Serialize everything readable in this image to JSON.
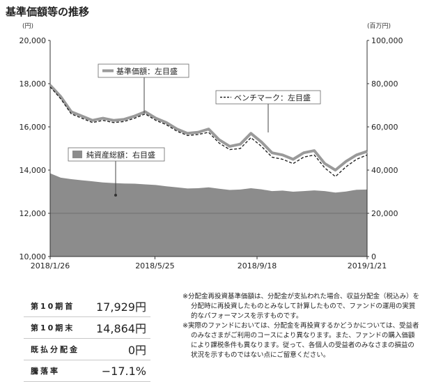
{
  "title": "基準価額等の推移",
  "chart_data": {
    "type": "line",
    "left_axis": {
      "unit": "(円)",
      "min": 10000,
      "max": 20000,
      "ticks": [
        10000,
        12000,
        14000,
        16000,
        18000,
        20000
      ],
      "tick_labels": [
        "10,000",
        "12,000",
        "14,000",
        "16,000",
        "18,000",
        "20,000"
      ]
    },
    "right_axis": {
      "unit": "(百万円)",
      "min": 0,
      "max": 100000,
      "ticks": [
        0,
        20000,
        40000,
        60000,
        80000,
        100000
      ],
      "tick_labels": [
        "0",
        "20,000",
        "40,000",
        "60,000",
        "80,000",
        "100,000"
      ]
    },
    "x_axis": {
      "start": "2018-01-26",
      "end": "2019-01-21",
      "tick_dates": [
        "2018-01-26",
        "2018-05-25",
        "2018-09-18",
        "2019-01-21"
      ],
      "tick_labels": [
        "2018/1/26",
        "2018/5/25",
        "2018/9/18",
        "2019/1/21"
      ]
    },
    "x": [
      "2018-01-26",
      "2018-02-07",
      "2018-02-19",
      "2018-03-03",
      "2018-03-15",
      "2018-03-27",
      "2018-04-08",
      "2018-04-20",
      "2018-05-02",
      "2018-05-14",
      "2018-05-26",
      "2018-06-07",
      "2018-06-19",
      "2018-07-01",
      "2018-07-13",
      "2018-07-25",
      "2018-08-06",
      "2018-08-18",
      "2018-08-30",
      "2018-09-11",
      "2018-09-23",
      "2018-10-05",
      "2018-10-17",
      "2018-10-29",
      "2018-11-10",
      "2018-11-22",
      "2018-12-04",
      "2018-12-16",
      "2018-12-28",
      "2019-01-09",
      "2019-01-21"
    ],
    "series": [
      {
        "name": "基準価額：左目盛",
        "axis": "left",
        "color": "#9a9a9a",
        "style": "solid-thick",
        "values": [
          17929,
          17400,
          16700,
          16500,
          16300,
          16400,
          16300,
          16350,
          16500,
          16700,
          16400,
          16200,
          15900,
          15700,
          15750,
          15900,
          15400,
          15100,
          15200,
          15700,
          15300,
          14800,
          14700,
          14500,
          14800,
          14900,
          14300,
          14000,
          14400,
          14700,
          14864
        ]
      },
      {
        "name": "ベンチマーク：左目盛",
        "axis": "left",
        "color": "#222222",
        "style": "dashed",
        "values": [
          17850,
          17300,
          16600,
          16400,
          16200,
          16300,
          16200,
          16250,
          16400,
          16600,
          16300,
          16100,
          15800,
          15600,
          15650,
          15750,
          15250,
          14950,
          15000,
          15500,
          15100,
          14600,
          14500,
          14300,
          14600,
          14700,
          14100,
          13700,
          14150,
          14500,
          14700
        ]
      },
      {
        "name": "純資産総額：右目盛",
        "axis": "right",
        "color": "#8c8c8c",
        "style": "area",
        "values": [
          38500,
          36500,
          35800,
          35300,
          34800,
          34300,
          34000,
          33800,
          33700,
          33400,
          33100,
          32500,
          32000,
          31500,
          31600,
          32000,
          31400,
          30800,
          31000,
          31600,
          31100,
          30300,
          30500,
          30000,
          30300,
          30600,
          30300,
          29600,
          30100,
          30900,
          31000
        ]
      }
    ],
    "grid": "horizontal at 12,000 only",
    "legend_placement": "labels with leader lines inside plot"
  },
  "stats": [
    {
      "label": "第10期首",
      "value": "17,929円"
    },
    {
      "label": "第10期末",
      "value": "14,864円"
    },
    {
      "label": "既払分配金",
      "value": "0円"
    },
    {
      "label": "騰落率",
      "value": "−17.1%"
    }
  ],
  "notes": [
    "※分配金再投資基準価額は、分配金が支払われた場合、収益分配金（税込み）を分配時に再投資したものとみなして計算したもので、ファンドの運用の実質的なパフォーマンスを示すものです。",
    "※実際のファンドにおいては、分配金を再投資するかどうかについては、受益者のみなさまがご利用のコースにより異なります。また、ファンドの購入価額により課税条件も異なります。従って、各個人の受益者のみなさまの損益の状況を示すものではない点にご留意ください。"
  ]
}
